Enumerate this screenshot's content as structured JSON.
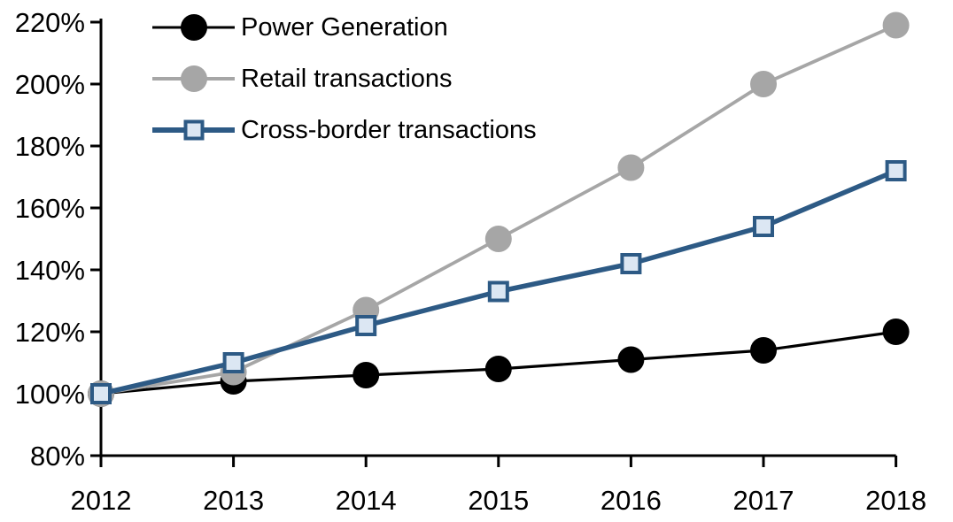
{
  "chart_data": {
    "type": "line",
    "title": "",
    "x_categories": [
      "2012",
      "2013",
      "2014",
      "2015",
      "2016",
      "2017",
      "2018"
    ],
    "y_axis": {
      "min": 80,
      "max": 220,
      "tick_step": 20,
      "tick_labels": [
        "80%",
        "100%",
        "120%",
        "140%",
        "160%",
        "180%",
        "200%",
        "220%"
      ],
      "unit": "%"
    },
    "grid": false,
    "legend_position": "top-left-inside-plot",
    "axis_color": "#000000",
    "series": [
      {
        "name": "Power Generation",
        "color": "#000000",
        "marker": "circle",
        "marker_fill": "#000000",
        "line_width": 3.2,
        "values": [
          100,
          104,
          106,
          108,
          111,
          114,
          120
        ]
      },
      {
        "name": "Retail transactions",
        "color": "#A6A6A6",
        "marker": "circle",
        "marker_fill": "#A6A6A6",
        "line_width": 3.8,
        "values": [
          100,
          107,
          127,
          150,
          173,
          200,
          219
        ]
      },
      {
        "name": "Cross-border transactions",
        "color": "#2D5A85",
        "marker": "square",
        "marker_fill": "#DCE7F3",
        "line_width": 5.5,
        "values": [
          100,
          110,
          122,
          133,
          142,
          154,
          172
        ]
      }
    ]
  }
}
